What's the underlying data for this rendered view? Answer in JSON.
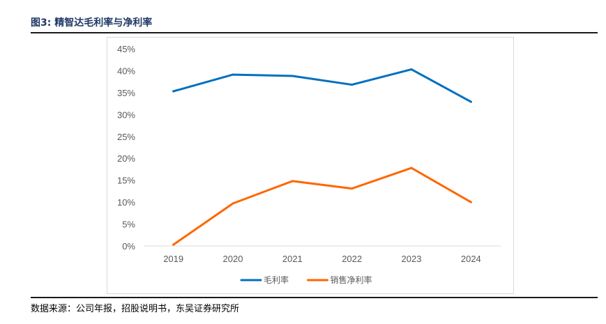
{
  "figure": {
    "title": "图3:  精智达毛利率与净利率",
    "source": "数据来源：公司年报，招股说明书，东吴证券研究所"
  },
  "chart_data": {
    "type": "line",
    "title": "",
    "xlabel": "",
    "ylabel": "",
    "categories": [
      "2019",
      "2020",
      "2021",
      "2022",
      "2023",
      "2024"
    ],
    "y_ticks": [
      "0%",
      "5%",
      "10%",
      "15%",
      "20%",
      "25%",
      "30%",
      "35%",
      "40%",
      "45%"
    ],
    "ylim": [
      0,
      45
    ],
    "grid": false,
    "legend_position": "bottom",
    "series": [
      {
        "name": "毛利率",
        "color": "#0070c0",
        "values": [
          35.3,
          39.1,
          38.8,
          36.8,
          40.3,
          32.9
        ]
      },
      {
        "name": "销售净利率",
        "color": "#ff6600",
        "values": [
          0.3,
          9.7,
          14.8,
          13.1,
          17.8,
          10.0
        ]
      }
    ]
  }
}
